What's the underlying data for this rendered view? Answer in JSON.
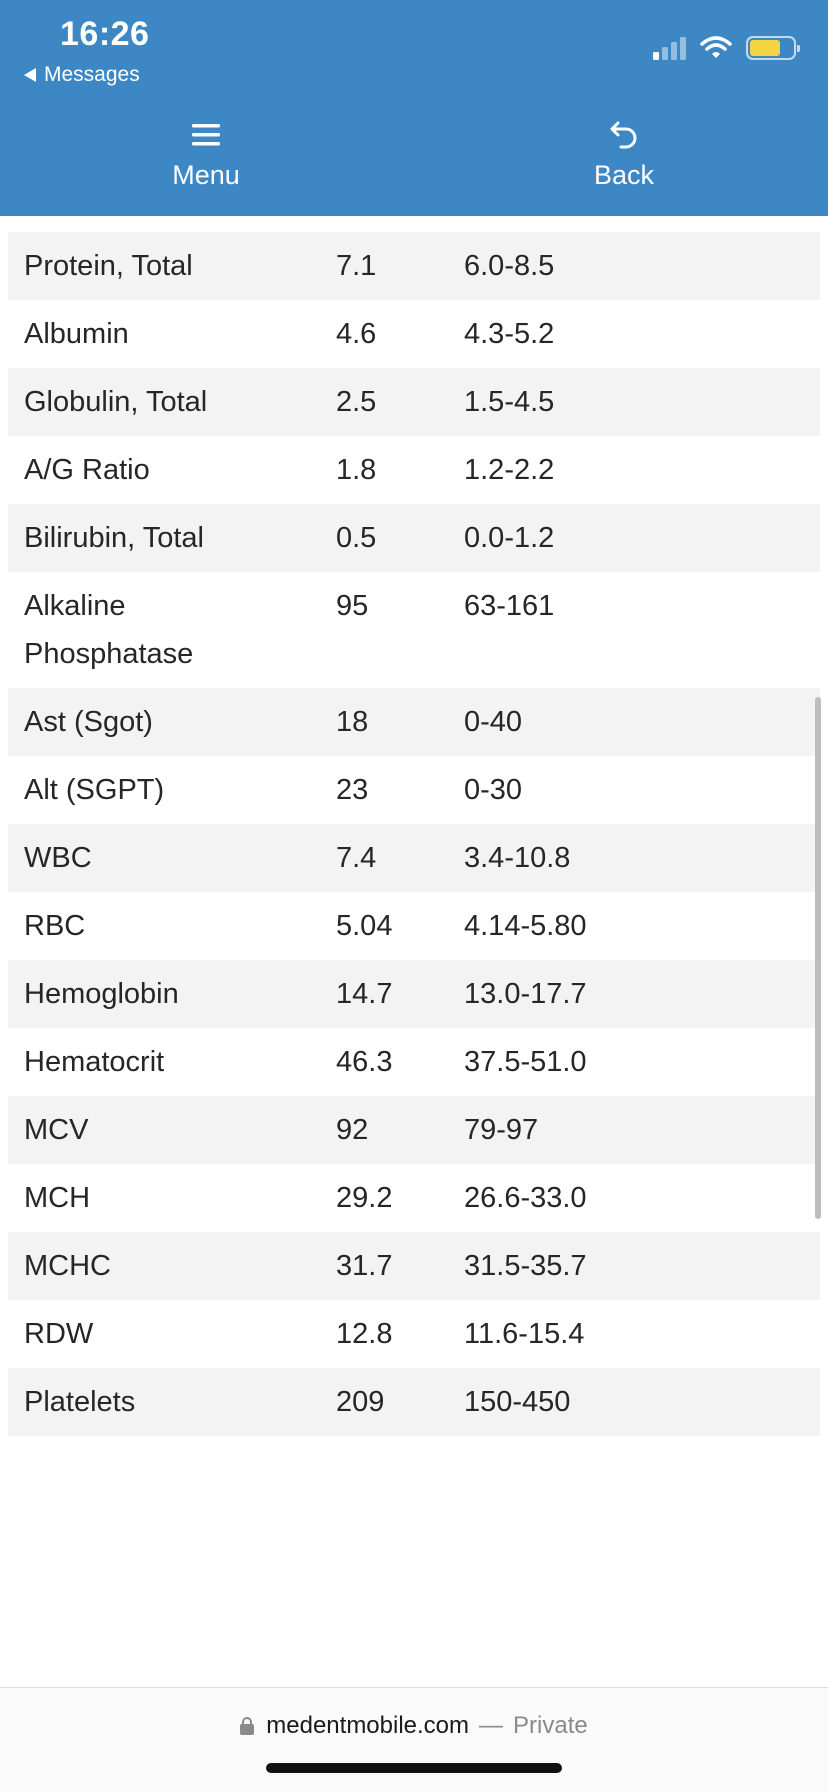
{
  "status_bar": {
    "time": "16:26",
    "back_app": "Messages",
    "signal_bars_active": 1,
    "battery_color": "#f5d442"
  },
  "nav": {
    "menu_label": "Menu",
    "menu_icon": "hamburger-icon",
    "back_label": "Back",
    "back_icon": "undo-arrow-icon",
    "background_color": "#3d87c5"
  },
  "results": [
    {
      "name": "Protein, Total",
      "value": "7.1",
      "range": "6.0-8.5"
    },
    {
      "name": "Albumin",
      "value": "4.6",
      "range": "4.3-5.2"
    },
    {
      "name": "Globulin, Total",
      "value": "2.5",
      "range": "1.5-4.5"
    },
    {
      "name": "A/G Ratio",
      "value": "1.8",
      "range": "1.2-2.2"
    },
    {
      "name": "Bilirubin, Total",
      "value": "0.5",
      "range": "0.0-1.2"
    },
    {
      "name": "Alkaline Phosphatase",
      "value": "95",
      "range": "63-161"
    },
    {
      "name": "Ast (Sgot)",
      "value": "18",
      "range": "0-40"
    },
    {
      "name": "Alt (SGPT)",
      "value": "23",
      "range": "0-30"
    },
    {
      "name": "WBC",
      "value": "7.4",
      "range": "3.4-10.8"
    },
    {
      "name": "RBC",
      "value": "5.04",
      "range": "4.14-5.80"
    },
    {
      "name": "Hemoglobin",
      "value": "14.7",
      "range": "13.0-17.7"
    },
    {
      "name": "Hematocrit",
      "value": "46.3",
      "range": "37.5-51.0"
    },
    {
      "name": "MCV",
      "value": "92",
      "range": "79-97"
    },
    {
      "name": "MCH",
      "value": "29.2",
      "range": "26.6-33.0"
    },
    {
      "name": "MCHC",
      "value": "31.7",
      "range": "31.5-35.7"
    },
    {
      "name": "RDW",
      "value": "12.8",
      "range": "11.6-15.4"
    },
    {
      "name": "Platelets",
      "value": "209",
      "range": "150-450"
    }
  ],
  "browser": {
    "domain": "medentmobile.com",
    "separator": "—",
    "mode": "Private",
    "lock_icon": "lock-icon"
  }
}
